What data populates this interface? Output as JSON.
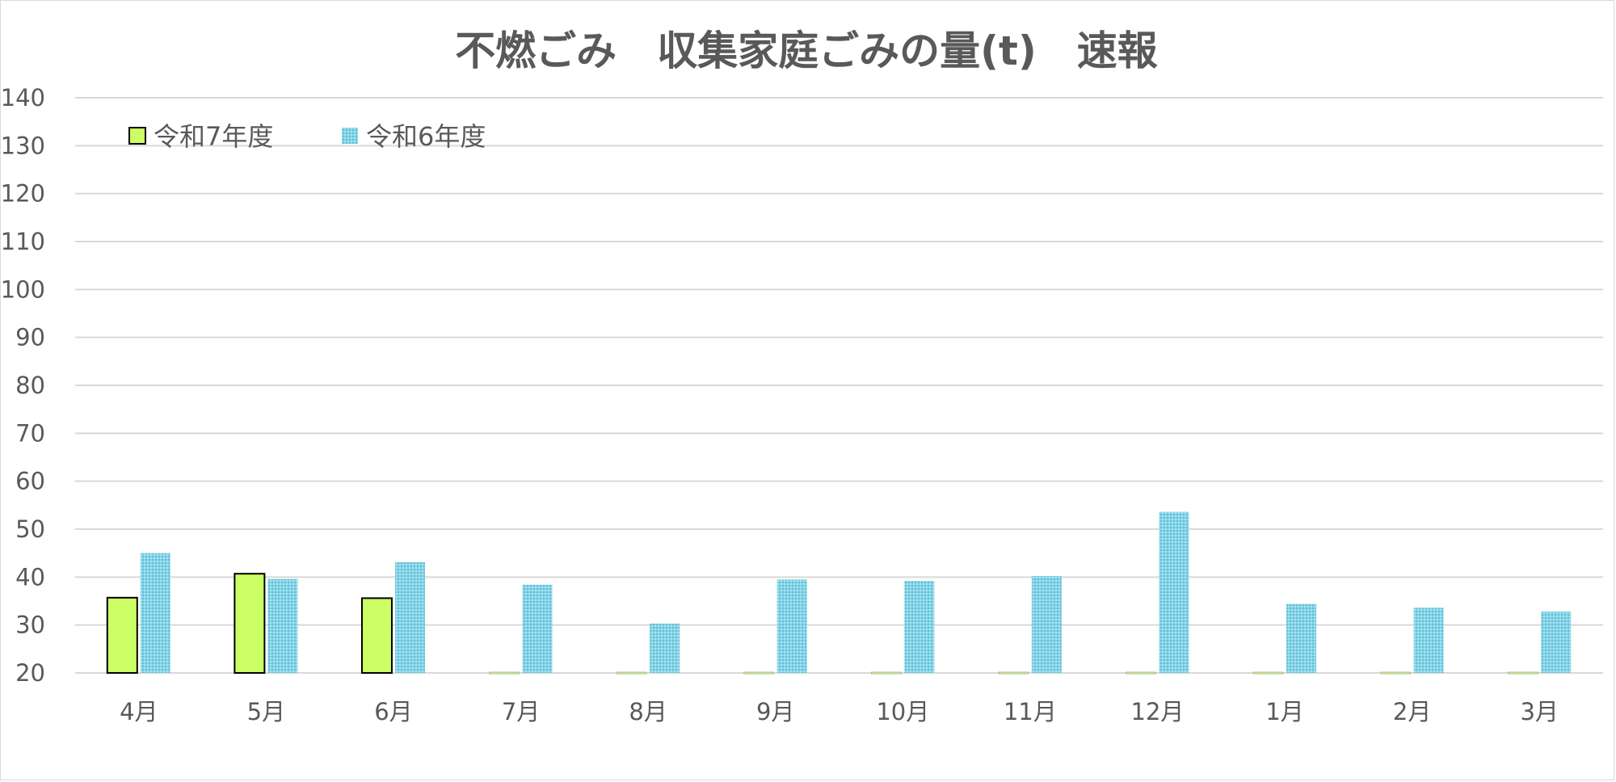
{
  "chart_data": {
    "type": "bar",
    "title": "不燃ごみ　収集家庭ごみの量(t)　速報",
    "xlabel": "",
    "ylabel": "",
    "categories": [
      "4月",
      "5月",
      "6月",
      "7月",
      "8月",
      "9月",
      "10月",
      "11月",
      "12月",
      "1月",
      "2月",
      "3月"
    ],
    "ylim": [
      20,
      140
    ],
    "yticks": [
      20,
      30,
      40,
      50,
      60,
      70,
      80,
      90,
      100,
      110,
      120,
      130,
      140
    ],
    "grid": true,
    "legend_position": "top-left",
    "series": [
      {
        "name": "令和7年度",
        "color": "#ccff66",
        "edge_color": "#000000",
        "values": [
          35.7,
          40.7,
          35.6,
          null,
          null,
          null,
          null,
          null,
          null,
          null,
          null,
          null
        ]
      },
      {
        "name": "令和6年度",
        "color": "#7fd0e4",
        "edge_color": "#7fd0e4",
        "values": [
          45.0,
          39.6,
          43.1,
          38.4,
          30.3,
          39.5,
          39.2,
          40.2,
          53.6,
          34.4,
          33.6,
          32.8
        ]
      }
    ]
  }
}
